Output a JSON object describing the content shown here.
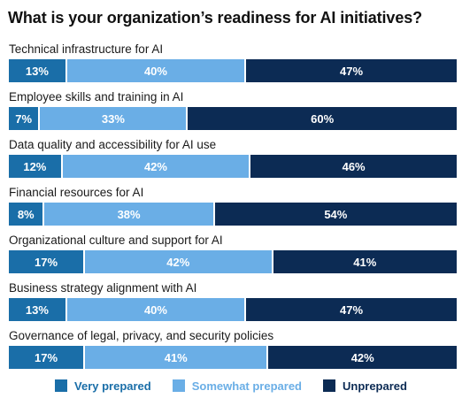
{
  "chart_data": {
    "type": "bar",
    "orientation": "horizontal",
    "stacked": true,
    "title": "What is your organization’s readiness for AI initiatives?",
    "categories": [
      "Technical infrastructure for AI",
      "Employee skills and training in AI",
      "Data quality and accessibility for AI use",
      "Financial resources for AI",
      "Organizational culture and support for AI",
      "Business strategy alignment with AI",
      "Governance of legal, privacy, and security policies"
    ],
    "series": [
      {
        "name": "Very prepared",
        "color": "#1a6ea8",
        "values": [
          13,
          7,
          12,
          8,
          17,
          13,
          17
        ]
      },
      {
        "name": "Somewhat prepared",
        "color": "#6aaee6",
        "values": [
          40,
          33,
          42,
          38,
          42,
          40,
          41
        ]
      },
      {
        "name": "Unprepared",
        "color": "#0c2b54",
        "values": [
          47,
          60,
          46,
          54,
          41,
          47,
          42
        ]
      }
    ],
    "value_suffix": "%",
    "xlim": [
      0,
      100
    ],
    "grid": false,
    "legend": "bottom"
  }
}
